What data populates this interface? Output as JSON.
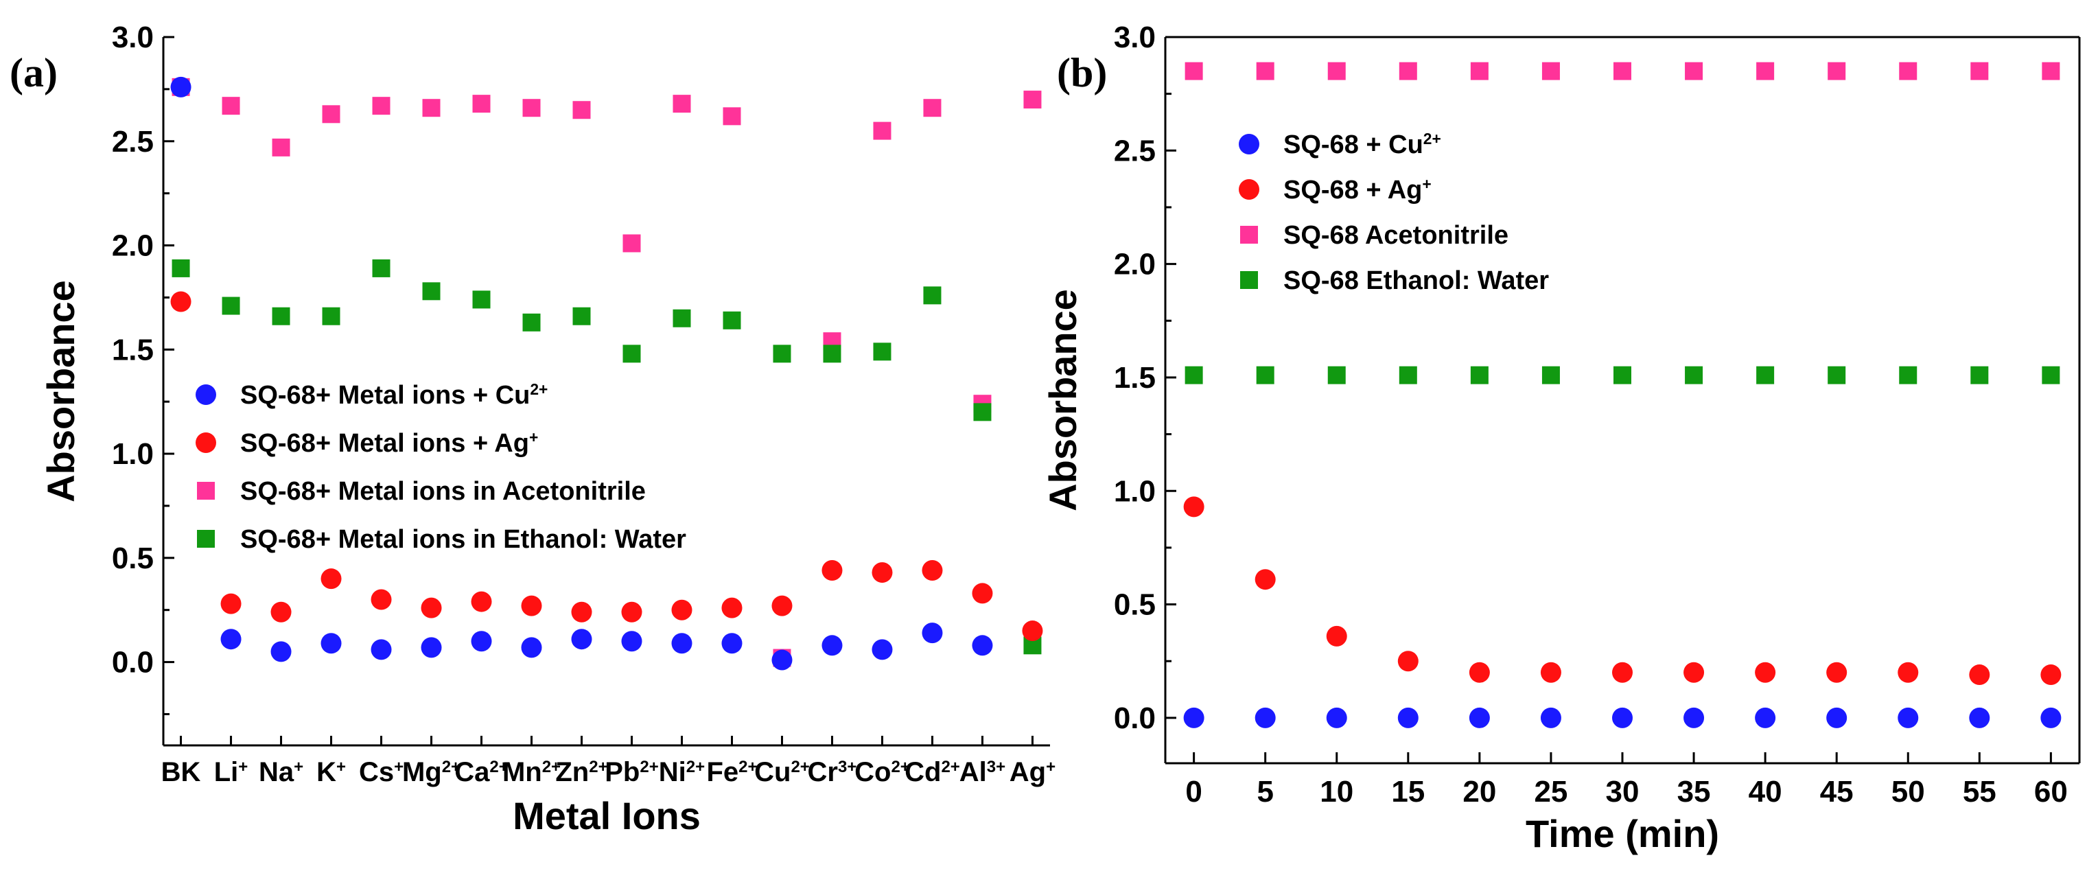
{
  "panels": [
    {
      "panel_label": "(a)",
      "chart_data": {
        "type": "scatter",
        "title": "",
        "xlabel": "Metal Ions",
        "ylabel": "Absorbance",
        "ylim": [
          -0.4,
          3.0
        ],
        "yticks": [
          "0.0",
          "0.5",
          "1.0",
          "1.5",
          "2.0",
          "2.5",
          "3.0"
        ],
        "categories": [
          {
            "base": "BK",
            "sup": ""
          },
          {
            "base": "Li",
            "sup": "+"
          },
          {
            "base": "Na",
            "sup": "+"
          },
          {
            "base": "K",
            "sup": "+"
          },
          {
            "base": "Cs",
            "sup": "+"
          },
          {
            "base": "Mg",
            "sup": "2+"
          },
          {
            "base": "Ca",
            "sup": "2+"
          },
          {
            "base": "Mn",
            "sup": "2+"
          },
          {
            "base": "Zn",
            "sup": "2+"
          },
          {
            "base": "Pb",
            "sup": "2+"
          },
          {
            "base": "Ni",
            "sup": "2+"
          },
          {
            "base": "Fe",
            "sup": "2+"
          },
          {
            "base": "Cu",
            "sup": "2+"
          },
          {
            "base": "Cr",
            "sup": "3+"
          },
          {
            "base": "Co",
            "sup": "2+"
          },
          {
            "base": "Cd",
            "sup": "2+"
          },
          {
            "base": "Al",
            "sup": "3+"
          },
          {
            "base": "Ag",
            "sup": "+"
          }
        ],
        "legend_position": "center-left",
        "series": [
          {
            "name": "SQ-68+ Metal ions in Acetonitrile",
            "name_base": "SQ-68+ Metal ions in Acetonitrile",
            "name_sup": "",
            "marker": "square",
            "color": "#ff3399",
            "values": [
              2.76,
              2.67,
              2.47,
              2.63,
              2.67,
              2.66,
              2.68,
              2.66,
              2.65,
              2.01,
              2.68,
              2.62,
              0.02,
              1.54,
              2.55,
              2.66,
              1.24,
              2.7
            ]
          },
          {
            "name": "SQ-68+ Metal ions in Ethanol: Water",
            "name_base": "SQ-68+ Metal ions in Ethanol: Water",
            "name_sup": "",
            "marker": "square",
            "color": "#119911",
            "values": [
              1.89,
              1.71,
              1.66,
              1.66,
              1.89,
              1.78,
              1.74,
              1.63,
              1.66,
              1.48,
              1.65,
              1.64,
              1.48,
              1.48,
              1.49,
              1.76,
              1.2,
              0.08
            ]
          },
          {
            "name": "SQ-68+ Metal ions + Ag+",
            "name_base": "SQ-68+ Metal ions + Ag",
            "name_sup": "+",
            "marker": "circle",
            "color": "#ff1111",
            "values": [
              1.73,
              0.28,
              0.24,
              0.4,
              0.3,
              0.26,
              0.29,
              0.27,
              0.24,
              0.24,
              0.25,
              0.26,
              0.27,
              0.44,
              0.43,
              0.44,
              0.33,
              0.15
            ]
          },
          {
            "name": "SQ-68+ Metal ions + Cu2+",
            "name_base": "SQ-68+ Metal ions + Cu",
            "name_sup": "2+",
            "marker": "circle",
            "color": "#1a1aff",
            "values": [
              2.76,
              0.11,
              0.05,
              0.09,
              0.06,
              0.07,
              0.1,
              0.07,
              0.11,
              0.1,
              0.09,
              0.09,
              0.01,
              0.08,
              0.06,
              0.14,
              0.08,
              null
            ]
          }
        ],
        "legend_order": [
          3,
          2,
          0,
          1
        ]
      }
    },
    {
      "panel_label": "(b)",
      "chart_data": {
        "type": "scatter",
        "title": "",
        "xlabel": "Time (min)",
        "ylabel": "Absorbance",
        "xlim": [
          -2,
          62
        ],
        "ylim": [
          -0.2,
          3.0
        ],
        "xticks": [
          0,
          5,
          10,
          15,
          20,
          25,
          30,
          35,
          40,
          45,
          50,
          55,
          60
        ],
        "yticks": [
          "0.0",
          "0.5",
          "1.0",
          "1.5",
          "2.0",
          "2.5",
          "3.0"
        ],
        "x": [
          0,
          5,
          10,
          15,
          20,
          25,
          30,
          35,
          40,
          45,
          50,
          55,
          60
        ],
        "legend_position": "top-left",
        "series": [
          {
            "name": "SQ-68 + Cu2+",
            "name_base": "SQ-68 + Cu",
            "name_sup": "2+",
            "marker": "circle",
            "color": "#1a1aff",
            "values": [
              0,
              0,
              0,
              0,
              0,
              0,
              0,
              0,
              0,
              0,
              0,
              0,
              0
            ]
          },
          {
            "name": "SQ-68 + Ag+",
            "name_base": "SQ-68 + Ag",
            "name_sup": "+",
            "marker": "circle",
            "color": "#ff1111",
            "values": [
              0.93,
              0.61,
              0.36,
              0.25,
              0.2,
              0.2,
              0.2,
              0.2,
              0.2,
              0.2,
              0.2,
              0.19,
              0.19
            ]
          },
          {
            "name": "SQ-68 Acetonitrile",
            "name_base": "SQ-68 Acetonitrile",
            "name_sup": "",
            "marker": "square",
            "color": "#ff3399",
            "values": [
              2.85,
              2.85,
              2.85,
              2.85,
              2.85,
              2.85,
              2.85,
              2.85,
              2.85,
              2.85,
              2.85,
              2.85,
              2.85
            ]
          },
          {
            "name": "SQ-68 Ethanol: Water",
            "name_base": "SQ-68 Ethanol: Water",
            "name_sup": "",
            "marker": "square",
            "color": "#119911",
            "values": [
              1.51,
              1.51,
              1.51,
              1.51,
              1.51,
              1.51,
              1.51,
              1.51,
              1.51,
              1.51,
              1.51,
              1.51,
              1.51
            ]
          }
        ],
        "legend_order": [
          0,
          1,
          2,
          3
        ]
      }
    }
  ]
}
